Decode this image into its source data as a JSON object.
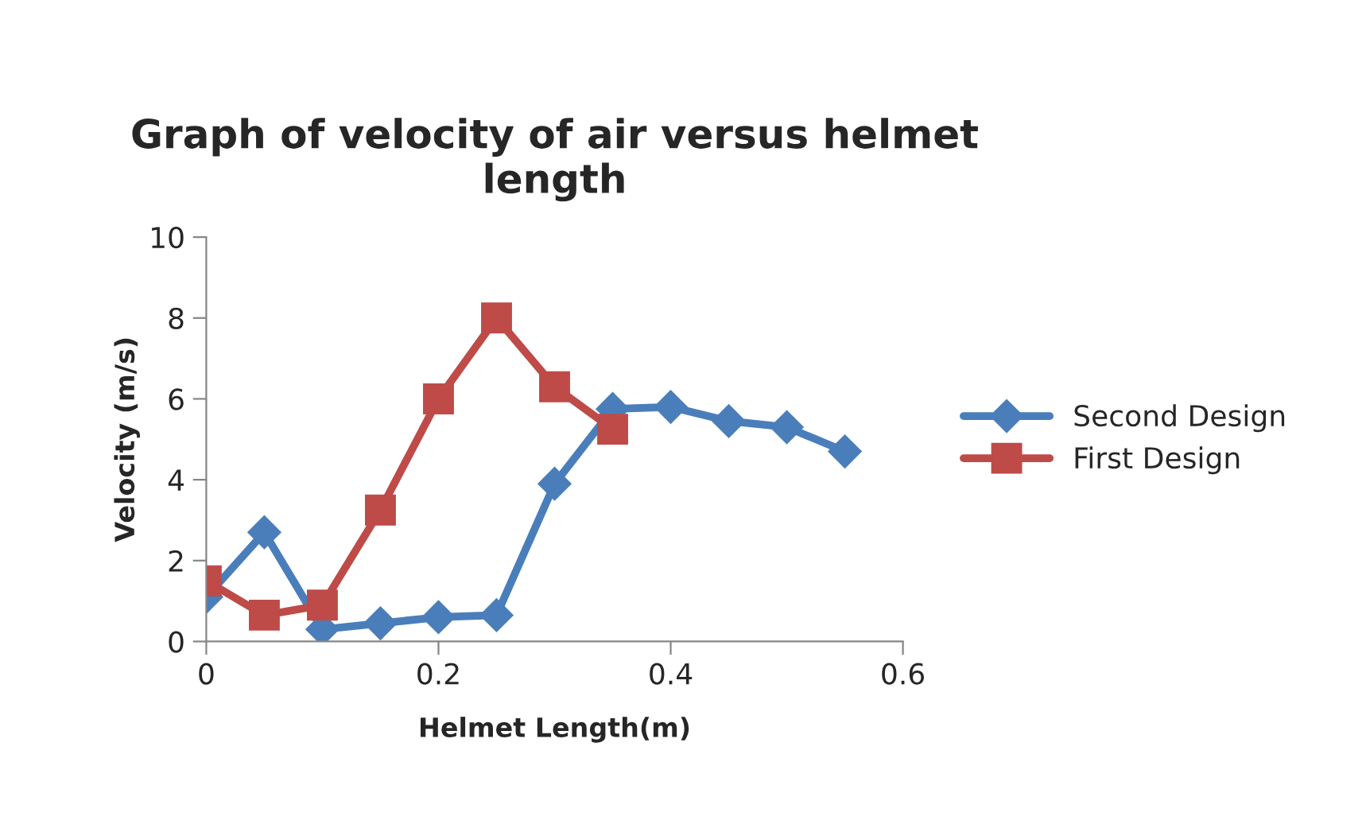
{
  "chart_data": {
    "type": "line",
    "title": "Graph of velocity of air versus helmet length",
    "xlabel": "Helmet Length(m)",
    "ylabel": "Velocity (m/s)",
    "series": [
      {
        "name": "Second Design",
        "color": "#4a7ebb",
        "marker": "diamond",
        "x": [
          0,
          0.05,
          0.1,
          0.15,
          0.2,
          0.25,
          0.3,
          0.35,
          0.4,
          0.45,
          0.5,
          0.55
        ],
        "values": [
          1.1,
          2.7,
          0.3,
          0.45,
          0.6,
          0.65,
          3.9,
          5.75,
          5.8,
          5.45,
          5.3,
          4.7
        ]
      },
      {
        "name": "First Design",
        "color": "#be4b48",
        "marker": "square",
        "x": [
          0,
          0.05,
          0.1,
          0.15,
          0.2,
          0.25,
          0.3,
          0.35
        ],
        "values": [
          1.5,
          0.65,
          0.9,
          3.25,
          6.0,
          8.0,
          6.3,
          5.25
        ]
      }
    ],
    "xlim": [
      0,
      0.6
    ],
    "xticks": [
      0,
      0.2,
      0.4,
      0.6
    ],
    "ylim": [
      0,
      10
    ],
    "yticks": [
      0,
      2,
      4,
      6,
      8,
      10
    ],
    "grid": false,
    "legend": "right",
    "line_style": "solid"
  }
}
